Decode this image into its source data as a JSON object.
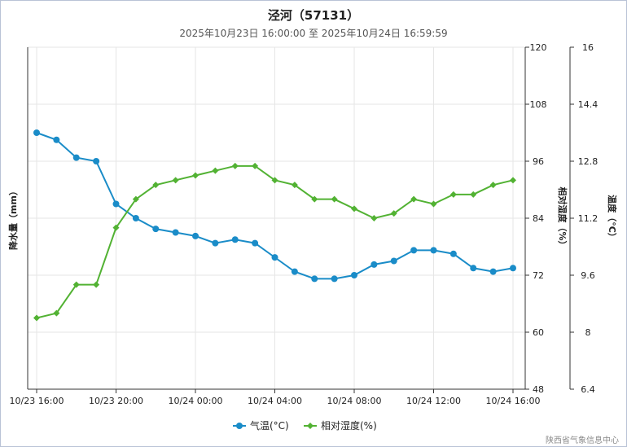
{
  "title": "泾河（57131）",
  "subtitle": "2025年10月23日 16:00:00 至 2025年10月24日 16:59:59",
  "watermark": "陕西省气象信息中心",
  "chart_data": {
    "type": "line",
    "x": [
      "10/23 16:00",
      "10/23 17:00",
      "10/23 18:00",
      "10/23 19:00",
      "10/23 20:00",
      "10/23 21:00",
      "10/23 22:00",
      "10/23 23:00",
      "10/24 00:00",
      "10/24 01:00",
      "10/24 02:00",
      "10/24 03:00",
      "10/24 04:00",
      "10/24 05:00",
      "10/24 06:00",
      "10/24 07:00",
      "10/24 08:00",
      "10/24 09:00",
      "10/24 10:00",
      "10/24 11:00",
      "10/24 12:00",
      "10/24 13:00",
      "10/24 14:00",
      "10/24 15:00",
      "10/24 16:00"
    ],
    "xticks": [
      "10/23 16:00",
      "10/23 20:00",
      "10/24 00:00",
      "10/24 04:00",
      "10/24 08:00",
      "10/24 12:00",
      "10/24 16:00"
    ],
    "xtick_index": [
      0,
      4,
      8,
      12,
      16,
      20,
      24
    ],
    "left_axis": {
      "label": "降水量（mm）"
    },
    "humidity_axis": {
      "label": "相对湿度（%）",
      "range": [
        48,
        120
      ],
      "ticks": [
        "48",
        "60",
        "72",
        "84",
        "96",
        "108",
        "120"
      ]
    },
    "temperature_axis": {
      "label": "温度（°C）",
      "range": [
        6.4,
        16
      ],
      "ticks": [
        "6.4",
        "8",
        "9.6",
        "11.2",
        "12.8",
        "14.4",
        "16"
      ]
    },
    "series": [
      {
        "name": "气温(°C)",
        "axis": "temperature",
        "color": "#1a8cc8",
        "marker": "circle",
        "values": [
          13.6,
          13.4,
          12.9,
          12.8,
          11.6,
          11.2,
          10.9,
          10.8,
          10.7,
          10.5,
          10.6,
          10.5,
          10.1,
          9.7,
          9.5,
          9.5,
          9.6,
          9.9,
          10.0,
          10.3,
          10.3,
          10.2,
          9.8,
          9.7,
          9.8
        ]
      },
      {
        "name": "相对湿度(%)",
        "axis": "humidity",
        "color": "#52b233",
        "marker": "diamond",
        "values": [
          63,
          64,
          70,
          70,
          82,
          88,
          91,
          92,
          93,
          94,
          95,
          95,
          92,
          91,
          88,
          88,
          86,
          84,
          85,
          88,
          87,
          89,
          89,
          91,
          92
        ]
      }
    ],
    "grid": true,
    "legend": "bottom"
  }
}
